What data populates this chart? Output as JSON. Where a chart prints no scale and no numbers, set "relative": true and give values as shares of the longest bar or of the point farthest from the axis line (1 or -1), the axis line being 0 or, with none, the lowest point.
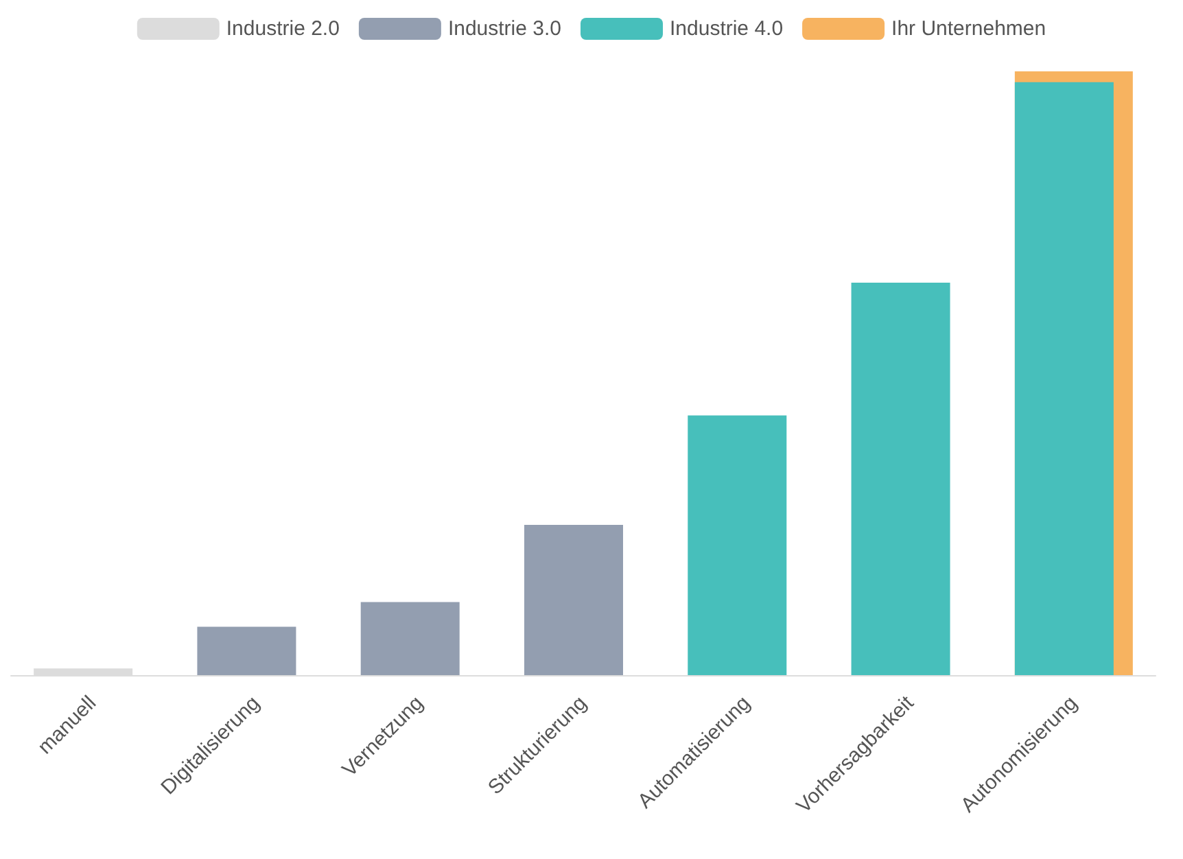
{
  "chart_data": {
    "type": "bar",
    "relative": true,
    "legend": "top",
    "categories": [
      "manuell",
      "Digitalisierung",
      "Vernetzung",
      "Strukturierung",
      "Automatisierung",
      "Vorhersagbarkeit",
      "Autonomisierung"
    ],
    "series": [
      {
        "name": "Industrie 2.0",
        "color": "#dcdcdc",
        "values": [
          0.011,
          null,
          null,
          null,
          null,
          null,
          null
        ]
      },
      {
        "name": "Industrie 3.0",
        "color": "#939eb0",
        "values": [
          null,
          0.08,
          0.121,
          0.249,
          null,
          null,
          null
        ]
      },
      {
        "name": "Industrie 4.0",
        "color": "#47bfbb",
        "values": [
          null,
          null,
          null,
          null,
          0.43,
          0.65,
          0.982
        ]
      },
      {
        "name": "Ihr Unternehmen",
        "color": "#f7b360",
        "values": [
          null,
          null,
          null,
          null,
          null,
          null,
          1
        ]
      }
    ]
  }
}
